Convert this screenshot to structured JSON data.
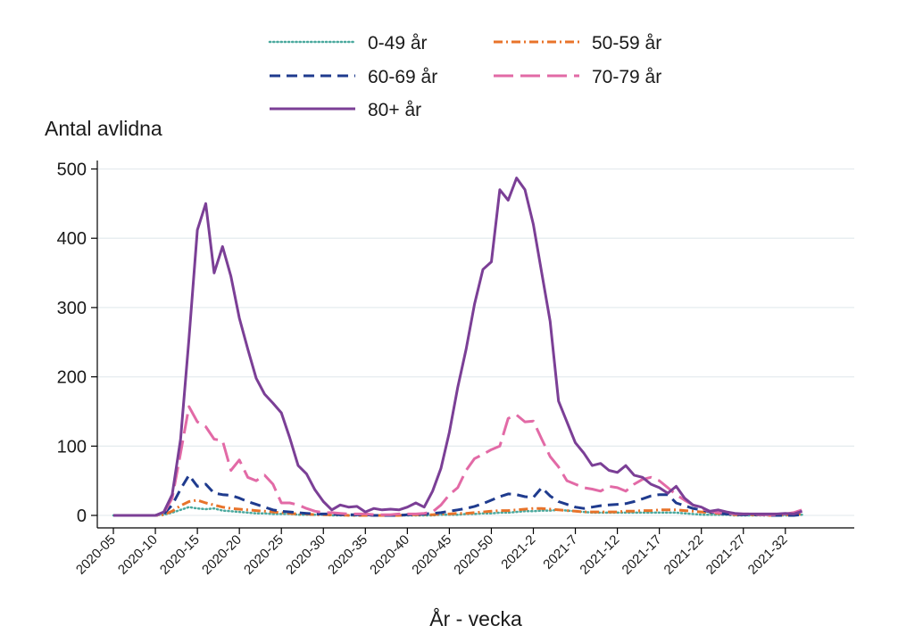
{
  "chart_data": {
    "type": "line",
    "ylabel": "Antal avlidna",
    "xlabel": "År - vecka",
    "ylim": [
      0,
      500
    ],
    "yticks": [
      0,
      100,
      200,
      300,
      400,
      500
    ],
    "xticks": [
      {
        "x": 0,
        "label": "2020-05"
      },
      {
        "x": 5,
        "label": "2020-10"
      },
      {
        "x": 10,
        "label": "2020-15"
      },
      {
        "x": 15,
        "label": "2020-20"
      },
      {
        "x": 20,
        "label": "2020-25"
      },
      {
        "x": 25,
        "label": "2020-30"
      },
      {
        "x": 30,
        "label": "2020-35"
      },
      {
        "x": 35,
        "label": "2020-40"
      },
      {
        "x": 40,
        "label": "2020-45"
      },
      {
        "x": 45,
        "label": "2020-50"
      },
      {
        "x": 50,
        "label": "2021-2"
      },
      {
        "x": 55,
        "label": "2021-7"
      },
      {
        "x": 60,
        "label": "2021-12"
      },
      {
        "x": 65,
        "label": "2021-17"
      },
      {
        "x": 70,
        "label": "2021-22"
      },
      {
        "x": 75,
        "label": "2021-27"
      },
      {
        "x": 80,
        "label": "2021-32"
      }
    ],
    "grid": true,
    "legend_position": "top",
    "series": [
      {
        "name": "0-49 år",
        "color": "#4aa99e",
        "style": "dotted",
        "values": [
          0,
          0,
          0,
          0,
          0,
          0,
          1,
          4,
          8,
          12,
          10,
          9,
          10,
          7,
          6,
          5,
          4,
          3,
          3,
          2,
          2,
          2,
          1,
          1,
          1,
          1,
          0,
          0,
          0,
          0,
          0,
          0,
          0,
          0,
          0,
          0,
          0,
          0,
          0,
          1,
          1,
          1,
          2,
          2,
          3,
          3,
          4,
          4,
          5,
          6,
          6,
          7,
          7,
          8,
          7,
          6,
          5,
          4,
          4,
          4,
          4,
          4,
          4,
          4,
          4,
          4,
          4,
          4,
          3,
          2,
          1,
          1,
          1,
          1,
          0,
          0,
          0,
          0,
          0,
          0,
          0,
          0,
          1
        ]
      },
      {
        "name": "50-59 år",
        "color": "#e8732a",
        "style": "dashdot",
        "values": [
          0,
          0,
          0,
          0,
          0,
          0,
          1,
          6,
          14,
          20,
          22,
          18,
          15,
          12,
          10,
          9,
          8,
          7,
          6,
          5,
          4,
          3,
          2,
          2,
          1,
          1,
          1,
          1,
          0,
          0,
          0,
          0,
          0,
          0,
          0,
          1,
          1,
          1,
          1,
          2,
          2,
          3,
          3,
          4,
          5,
          6,
          7,
          7,
          8,
          9,
          10,
          10,
          9,
          8,
          7,
          6,
          5,
          5,
          5,
          5,
          5,
          6,
          6,
          7,
          7,
          8,
          8,
          8,
          7,
          6,
          5,
          4,
          3,
          2,
          1,
          1,
          1,
          1,
          0,
          0,
          1,
          1,
          2
        ]
      },
      {
        "name": "60-69 år",
        "color": "#1f3b8e",
        "style": "dashed",
        "values": [
          0,
          0,
          0,
          0,
          0,
          0,
          2,
          15,
          38,
          58,
          42,
          45,
          32,
          30,
          29,
          25,
          20,
          16,
          12,
          8,
          6,
          5,
          4,
          3,
          2,
          2,
          2,
          1,
          1,
          1,
          1,
          0,
          0,
          0,
          0,
          1,
          1,
          2,
          3,
          4,
          6,
          8,
          10,
          13,
          17,
          22,
          27,
          31,
          30,
          27,
          26,
          40,
          28,
          20,
          16,
          12,
          10,
          12,
          14,
          15,
          16,
          17,
          20,
          24,
          28,
          30,
          30,
          18,
          14,
          10,
          8,
          5,
          3,
          2,
          1,
          1,
          1,
          1,
          0,
          0,
          0,
          0,
          1
        ]
      },
      {
        "name": "70-79 år",
        "color": "#e26aa6",
        "style": "longdash",
        "values": [
          0,
          0,
          0,
          0,
          0,
          0,
          3,
          25,
          90,
          157,
          135,
          128,
          110,
          108,
          65,
          80,
          55,
          50,
          58,
          45,
          18,
          18,
          15,
          10,
          6,
          4,
          4,
          3,
          2,
          2,
          2,
          1,
          1,
          1,
          2,
          2,
          2,
          3,
          5,
          15,
          30,
          40,
          65,
          82,
          88,
          95,
          100,
          140,
          145,
          135,
          136,
          110,
          85,
          70,
          50,
          45,
          40,
          38,
          35,
          42,
          40,
          35,
          45,
          52,
          55,
          50,
          40,
          30,
          22,
          15,
          10,
          6,
          4,
          3,
          2,
          2,
          2,
          1,
          1,
          1,
          2,
          4,
          8
        ]
      },
      {
        "name": "80+ år",
        "color": "#7b3f96",
        "style": "solid",
        "values": [
          0,
          0,
          0,
          0,
          0,
          0,
          5,
          30,
          110,
          255,
          412,
          450,
          350,
          388,
          345,
          285,
          240,
          198,
          175,
          162,
          148,
          112,
          72,
          60,
          37,
          20,
          8,
          15,
          12,
          13,
          5,
          10,
          8,
          9,
          8,
          12,
          18,
          12,
          35,
          68,
          120,
          185,
          240,
          305,
          355,
          366,
          470,
          455,
          487,
          470,
          420,
          350,
          280,
          165,
          135,
          105,
          90,
          72,
          75,
          65,
          62,
          72,
          58,
          55,
          45,
          40,
          32,
          42,
          25,
          15,
          12,
          6,
          8,
          5,
          3,
          2,
          2,
          2,
          2,
          2,
          3,
          2,
          6
        ]
      }
    ]
  }
}
